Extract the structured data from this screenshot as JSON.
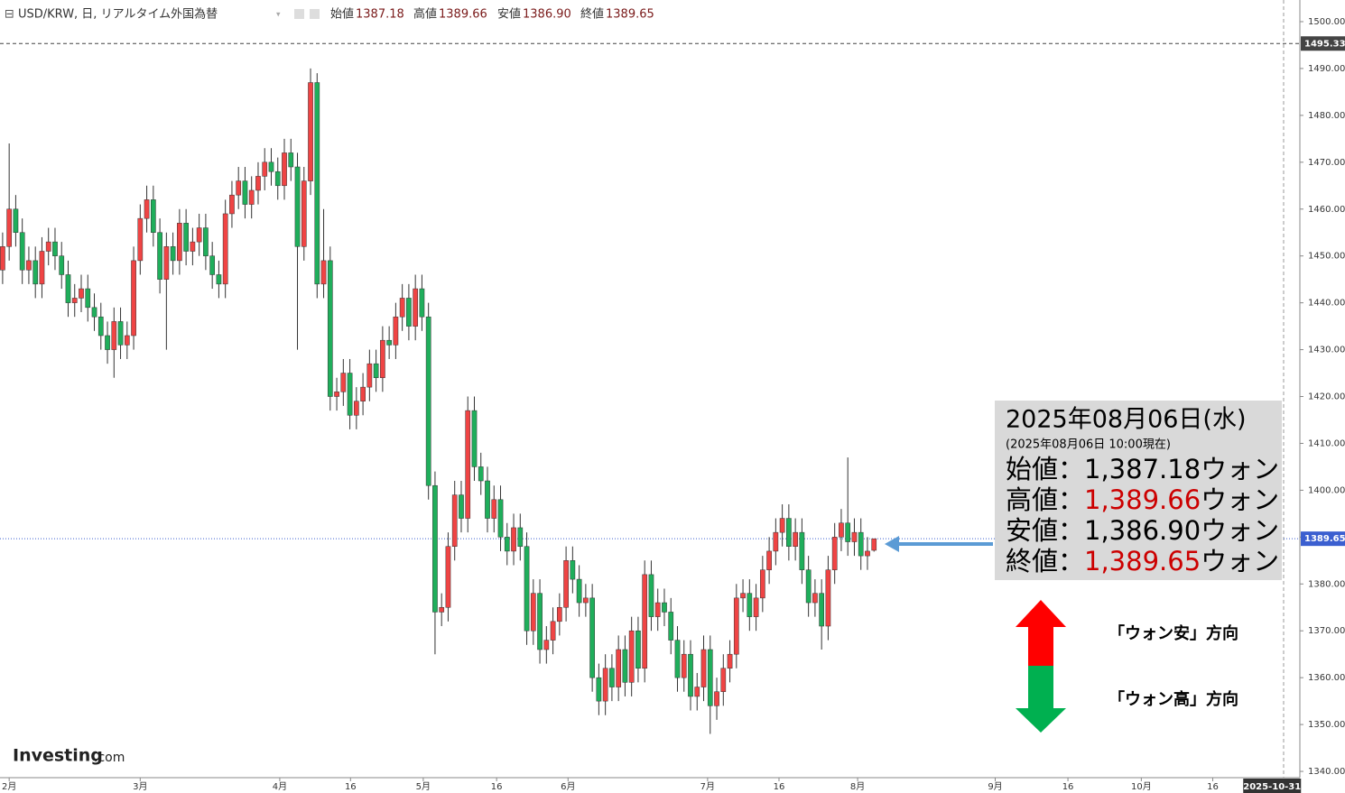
{
  "chart_data": {
    "type": "candlestick",
    "title": "USD/KRW, 日, リアルタイム外国為替",
    "ohlc_labels": [
      "始値",
      "高値",
      "安値",
      "終値"
    ],
    "ohlc_values": [
      "1387.18",
      "1389.66",
      "1386.90",
      "1389.65"
    ],
    "up_color": "#ef4444",
    "down_color": "#1fae5b",
    "open": [
      1447,
      1452,
      1460,
      1455,
      1447,
      1449,
      1444,
      1451,
      1453,
      1450,
      1446,
      1440,
      1441,
      1443,
      1439,
      1437,
      1433,
      1430,
      1436,
      1431,
      1433,
      1449,
      1458,
      1462,
      1455,
      1445,
      1452,
      1449,
      1457,
      1451,
      1453,
      1456,
      1450,
      1446,
      1444,
      1459,
      1463,
      1466,
      1461,
      1464,
      1467,
      1470,
      1468,
      1465,
      1472,
      1469,
      1452,
      1466,
      1487,
      1444,
      1449,
      1420,
      1421,
      1425,
      1416,
      1419,
      1422,
      1427,
      1424,
      1432,
      1431,
      1437,
      1441,
      1435,
      1443,
      1437,
      1401,
      1374,
      1375,
      1388,
      1399,
      1394,
      1417,
      1405,
      1402,
      1394,
      1398,
      1390,
      1387,
      1392,
      1388,
      1370,
      1378,
      1366,
      1368,
      1372,
      1375,
      1385,
      1381,
      1376,
      1377,
      1360,
      1355,
      1362,
      1358,
      1366,
      1359,
      1370,
      1362,
      1382,
      1373,
      1376,
      1374,
      1368,
      1360,
      1365,
      1356,
      1358,
      1366,
      1354,
      1357,
      1362,
      1365,
      1377,
      1378,
      1373,
      1377,
      1383,
      1387,
      1391,
      1394,
      1388,
      1391,
      1383,
      1376,
      1378,
      1371,
      1383,
      1390,
      1393,
      1389,
      1391,
      1386,
      1387.18
    ],
    "high": [
      1455,
      1474,
      1463,
      1458,
      1452,
      1452,
      1454,
      1456,
      1456,
      1453,
      1449,
      1444,
      1446,
      1446,
      1442,
      1440,
      1436,
      1439,
      1439,
      1436,
      1452,
      1461,
      1465,
      1465,
      1458,
      1455,
      1455,
      1460,
      1460,
      1456,
      1459,
      1459,
      1453,
      1449,
      1462,
      1466,
      1469,
      1469,
      1467,
      1470,
      1473,
      1473,
      1471,
      1475,
      1475,
      1472,
      1469,
      1490,
      1489,
      1460,
      1452,
      1424,
      1428,
      1428,
      1422,
      1425,
      1430,
      1430,
      1435,
      1435,
      1440,
      1444,
      1444,
      1446,
      1446,
      1440,
      1404,
      1378,
      1391,
      1402,
      1402,
      1420,
      1420,
      1408,
      1405,
      1401,
      1401,
      1393,
      1395,
      1395,
      1391,
      1381,
      1381,
      1371,
      1375,
      1378,
      1388,
      1388,
      1384,
      1380,
      1380,
      1363,
      1365,
      1365,
      1369,
      1369,
      1373,
      1373,
      1385,
      1385,
      1379,
      1379,
      1377,
      1371,
      1368,
      1368,
      1361,
      1369,
      1369,
      1360,
      1365,
      1368,
      1380,
      1381,
      1381,
      1380,
      1386,
      1390,
      1394,
      1397,
      1397,
      1394,
      1394,
      1386,
      1381,
      1381,
      1386,
      1393,
      1396,
      1407,
      1394,
      1394,
      1390,
      1389.66
    ],
    "low": [
      1444,
      1449,
      1452,
      1444,
      1444,
      1441,
      1441,
      1448,
      1447,
      1443,
      1437,
      1437,
      1438,
      1436,
      1434,
      1430,
      1427,
      1424,
      1428,
      1428,
      1430,
      1446,
      1455,
      1452,
      1442,
      1430,
      1446,
      1446,
      1448,
      1448,
      1450,
      1447,
      1443,
      1441,
      1441,
      1456,
      1460,
      1458,
      1458,
      1461,
      1464,
      1465,
      1462,
      1462,
      1466,
      1430,
      1449,
      1463,
      1441,
      1441,
      1417,
      1417,
      1418,
      1413,
      1413,
      1416,
      1419,
      1421,
      1421,
      1428,
      1428,
      1434,
      1432,
      1432,
      1434,
      1398,
      1365,
      1371,
      1372,
      1385,
      1391,
      1391,
      1402,
      1399,
      1391,
      1391,
      1387,
      1384,
      1384,
      1385,
      1367,
      1367,
      1363,
      1363,
      1365,
      1369,
      1372,
      1378,
      1373,
      1373,
      1357,
      1352,
      1352,
      1355,
      1355,
      1356,
      1356,
      1359,
      1359,
      1370,
      1370,
      1371,
      1365,
      1357,
      1357,
      1353,
      1353,
      1355,
      1348,
      1351,
      1354,
      1359,
      1362,
      1374,
      1370,
      1370,
      1374,
      1380,
      1384,
      1388,
      1385,
      1385,
      1380,
      1373,
      1373,
      1366,
      1368,
      1380,
      1387,
      1386,
      1386,
      1383,
      1383,
      1386.9
    ],
    "close": [
      1452,
      1460,
      1455,
      1447,
      1449,
      1444,
      1451,
      1453,
      1450,
      1446,
      1440,
      1441,
      1443,
      1439,
      1437,
      1433,
      1430,
      1436,
      1431,
      1433,
      1449,
      1458,
      1462,
      1455,
      1445,
      1452,
      1449,
      1457,
      1451,
      1453,
      1456,
      1450,
      1446,
      1444,
      1459,
      1463,
      1466,
      1461,
      1464,
      1467,
      1470,
      1468,
      1465,
      1472,
      1469,
      1452,
      1466,
      1487,
      1444,
      1449,
      1420,
      1421,
      1425,
      1416,
      1419,
      1422,
      1427,
      1424,
      1432,
      1431,
      1437,
      1441,
      1435,
      1443,
      1437,
      1401,
      1374,
      1375,
      1388,
      1399,
      1394,
      1417,
      1405,
      1402,
      1394,
      1398,
      1390,
      1387,
      1392,
      1388,
      1370,
      1378,
      1366,
      1368,
      1372,
      1375,
      1385,
      1381,
      1376,
      1377,
      1360,
      1355,
      1362,
      1358,
      1366,
      1359,
      1370,
      1362,
      1382,
      1373,
      1376,
      1374,
      1368,
      1360,
      1365,
      1356,
      1358,
      1366,
      1354,
      1357,
      1362,
      1365,
      1377,
      1378,
      1373,
      1377,
      1383,
      1387,
      1391,
      1394,
      1388,
      1391,
      1383,
      1376,
      1378,
      1371,
      1383,
      1390,
      1393,
      1389,
      1391,
      1386,
      1387,
      1389.65
    ],
    "xlim": [
      -0.4,
      198
    ],
    "xticks": [
      {
        "value": 1,
        "label": "2月"
      },
      {
        "value": 21,
        "label": "3月"
      },
      {
        "value": 42.3,
        "label": "4月"
      },
      {
        "value": 53.1,
        "label": "16"
      },
      {
        "value": 64.2,
        "label": "5月"
      },
      {
        "value": 75.4,
        "label": "16"
      },
      {
        "value": 86.3,
        "label": "6月"
      },
      {
        "value": 107.6,
        "label": "7月"
      },
      {
        "value": 118.5,
        "label": "16"
      },
      {
        "value": 130.5,
        "label": "8月"
      },
      {
        "value": 151.5,
        "label": "9月"
      },
      {
        "value": 162.6,
        "label": "16"
      },
      {
        "value": 173.8,
        "label": "10月"
      },
      {
        "value": 184.7,
        "label": "16"
      }
    ],
    "x_end": {
      "value": 193.9,
      "label": "2025-10-31"
    },
    "ylim": [
      1338.66,
      1504.62
    ],
    "yticks": [
      {
        "value": 1340,
        "label": "1340.00"
      },
      {
        "value": 1350,
        "label": "1350.00"
      },
      {
        "value": 1360,
        "label": "1360.00"
      },
      {
        "value": 1370,
        "label": "1370.00"
      },
      {
        "value": 1380,
        "label": "1380.00"
      },
      {
        "value": 1390,
        "label": "1390.00"
      },
      {
        "value": 1400,
        "label": "1400.00"
      },
      {
        "value": 1410,
        "label": "1410.00"
      },
      {
        "value": 1420,
        "label": "1420.00"
      },
      {
        "value": 1430,
        "label": "1430.00"
      },
      {
        "value": 1440,
        "label": "1440.00"
      },
      {
        "value": 1450,
        "label": "1450.00"
      },
      {
        "value": 1460,
        "label": "1460.00"
      },
      {
        "value": 1470,
        "label": "1470.00"
      },
      {
        "value": 1480,
        "label": "1480.00"
      },
      {
        "value": 1490,
        "label": "1490.00"
      },
      {
        "value": 1500,
        "label": "1500.00"
      }
    ],
    "price_lines": [
      {
        "value": 1495.33,
        "color": "#444444",
        "dash": "4 3"
      },
      {
        "value": 1389.65,
        "color": "#3b5fd0",
        "dash": "1 2"
      }
    ],
    "info_box": {
      "date": "2025年08月06日(水)",
      "asof": "(2025年08月06日 10:00現在)",
      "rows": [
        {
          "label": "始値：",
          "value": "1,387.18",
          "unit": "ウォン",
          "color": "#000000"
        },
        {
          "label": "高値：",
          "value": "1,389.66",
          "unit": "ウォン",
          "color": "#cc0000"
        },
        {
          "label": "安値：",
          "value": "1,386.90",
          "unit": "ウォン",
          "color": "#000000"
        },
        {
          "label": "終値：",
          "value": "1,389.65",
          "unit": "ウォン",
          "color": "#cc0000"
        }
      ]
    },
    "direction_notes": [
      "「ウォン安」方向",
      "「ウォン高」方向"
    ],
    "logo": "Investing",
    "logo_suffix": ".com"
  }
}
